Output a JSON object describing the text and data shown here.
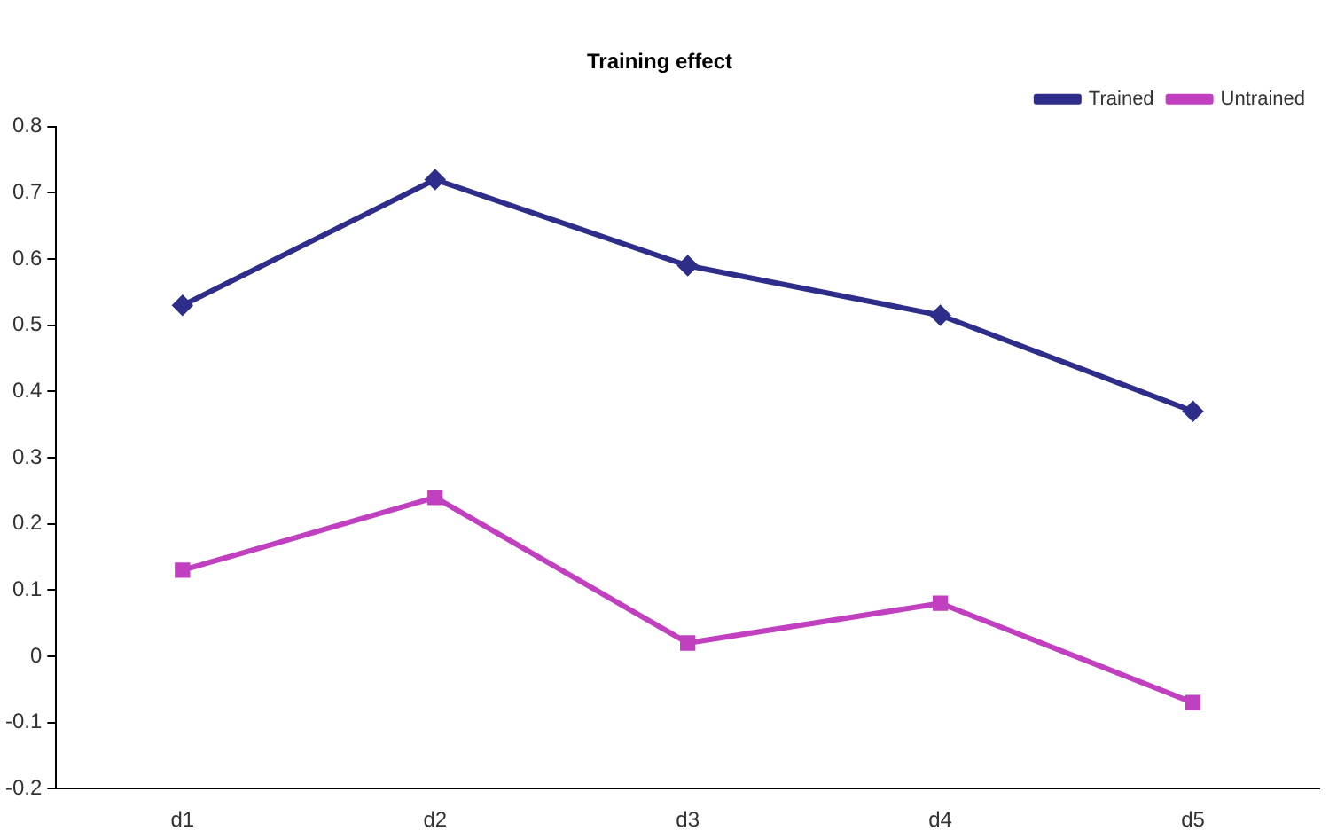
{
  "chart_data": {
    "type": "line",
    "title": "Training effect",
    "categories": [
      "d1",
      "d2",
      "d3",
      "d4",
      "d5"
    ],
    "series": [
      {
        "name": "Trained",
        "color": "#2e2e8a",
        "marker": "diamond",
        "values": [
          0.53,
          0.72,
          0.59,
          0.515,
          0.37
        ]
      },
      {
        "name": "Untrained",
        "color": "#c040c0",
        "marker": "square",
        "values": [
          0.13,
          0.24,
          0.02,
          0.08,
          -0.07
        ]
      }
    ],
    "ylim": [
      -0.2,
      0.8
    ],
    "yticks": [
      -0.2,
      -0.1,
      0,
      0.1,
      0.2,
      0.3,
      0.4,
      0.5,
      0.6,
      0.7,
      0.8
    ],
    "grid": false,
    "legend": "top right",
    "line_style": "solid"
  }
}
